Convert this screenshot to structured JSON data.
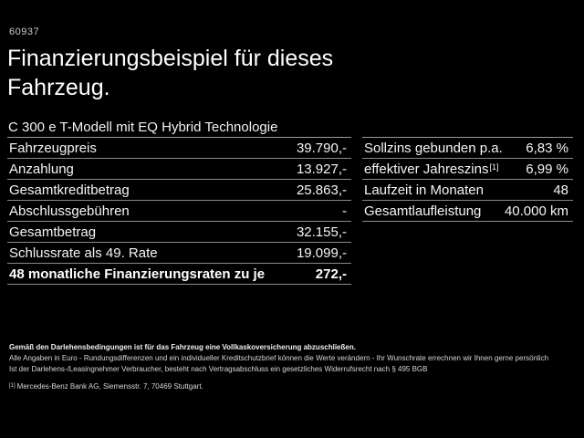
{
  "page": {
    "offer_id": "60937",
    "title": "Finanzierungsbeispiel für dieses Fahrzeug.",
    "subtitle": "C 300 e T-Modell mit EQ Hybrid Technologie"
  },
  "finance_table": {
    "rows": [
      {
        "label": "Fahrzeugpreis",
        "value": "39.790,-"
      },
      {
        "label": "Anzahlung",
        "value": "13.927,-"
      },
      {
        "label": "Gesamtkreditbetrag",
        "value": "25.863,-"
      },
      {
        "label": "Abschlussgebühren",
        "value": "-"
      },
      {
        "label": "Gesamtbetrag",
        "value": "32.155,-"
      },
      {
        "label": "Schlussrate als 49. Rate",
        "value": "19.099,-"
      },
      {
        "label": "48 monatliche Finanzierungsraten zu je",
        "value": "272,-"
      }
    ]
  },
  "conditions_table": {
    "rows": [
      {
        "label": "Sollzins gebunden p.a.",
        "value": "6,83 %"
      },
      {
        "label": "effektiver Jahreszins",
        "label_sup": "[1]",
        "value": "6,99 %"
      },
      {
        "label": "Laufzeit in Monaten",
        "value": "48"
      },
      {
        "label": "Gesamtlaufleistung",
        "value": "40.000 km"
      }
    ]
  },
  "footer": {
    "bold_note": "Gemäß den Darlehensbedingungen ist für das Fahrzeug eine Vollkaskoversicherung abzuschließen.",
    "note_line2": "Alle Angaben in Euro - Rundungsdifferenzen und ein individueller Kreditschutzbrief können die Werte verändern - Ihr Wunschrate errechnen wir Ihnen gerne persönlich",
    "note_line3": "Ist der Darlehens-/Leasingnehmer Verbraucher, besteht nach Vertragsabschluss ein gesetzliches Widerrufsrecht nach § 495 BGB",
    "footnote_marker": "[1]",
    "footnote": "Mercedes-Benz Bank AG, Siemensstr. 7, 70469 Stuttgart."
  },
  "colors": {
    "background": "#000000",
    "text": "#ffffff",
    "muted_text": "#d6d6d6",
    "divider": "#8a8a8a"
  }
}
